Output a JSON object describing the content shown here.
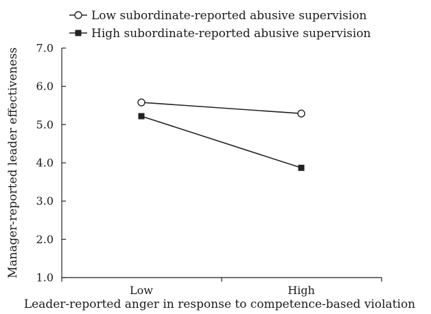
{
  "chart_data": {
    "type": "line",
    "xlabel": "Leader-reported anger in response to competence-based violation",
    "ylabel": "Manager-reported leader effectiveness",
    "categories": [
      "Low",
      "High"
    ],
    "ylim": [
      1.0,
      7.0
    ],
    "yticks": [
      "1.0",
      "2.0",
      "3.0",
      "4.0",
      "5.0",
      "6.0",
      "7.0"
    ],
    "grid": false,
    "legend_position": "top-left",
    "series": [
      {
        "name": "Low subordinate-reported abusive supervision",
        "marker": "open-circle",
        "values": [
          5.58,
          5.29
        ]
      },
      {
        "name": "High subordinate-reported abusive supervision",
        "marker": "filled-square",
        "values": [
          5.22,
          3.87
        ]
      }
    ]
  }
}
